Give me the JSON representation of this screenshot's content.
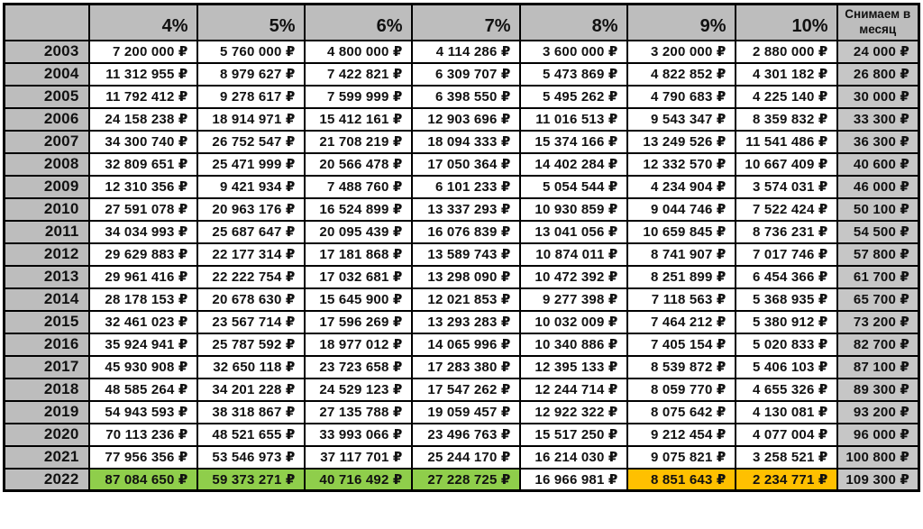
{
  "table": {
    "corner_label": "",
    "rate_headers": [
      "4%",
      "5%",
      "6%",
      "7%",
      "8%",
      "9%",
      "10%"
    ],
    "monthly_header": "Снимаем в месяц",
    "rows": [
      {
        "year": "2003",
        "cells": [
          "7 200 000 ₽",
          "5 760 000 ₽",
          "4 800 000 ₽",
          "4 114 286 ₽",
          "3 600 000 ₽",
          "3 200 000 ₽",
          "2 880 000 ₽"
        ],
        "monthly": "24 000 ₽"
      },
      {
        "year": "2004",
        "cells": [
          "11 312 955 ₽",
          "8 979 627 ₽",
          "7 422 821 ₽",
          "6 309 707 ₽",
          "5 473 869 ₽",
          "4 822 852 ₽",
          "4 301 182 ₽"
        ],
        "monthly": "26 800 ₽"
      },
      {
        "year": "2005",
        "cells": [
          "11 792 412 ₽",
          "9 278 617 ₽",
          "7 599 999 ₽",
          "6 398 550 ₽",
          "5 495 262 ₽",
          "4 790 683 ₽",
          "4 225 140 ₽"
        ],
        "monthly": "30 000 ₽"
      },
      {
        "year": "2006",
        "cells": [
          "24 158 238 ₽",
          "18 914 971 ₽",
          "15 412 161 ₽",
          "12 903 696 ₽",
          "11 016 513 ₽",
          "9 543 347 ₽",
          "8 359 832 ₽"
        ],
        "monthly": "33 300 ₽"
      },
      {
        "year": "2007",
        "cells": [
          "34 300 740 ₽",
          "26 752 547 ₽",
          "21 708 219 ₽",
          "18 094 333 ₽",
          "15 374 166 ₽",
          "13 249 526 ₽",
          "11 541 486 ₽"
        ],
        "monthly": "36 300 ₽"
      },
      {
        "year": "2008",
        "cells": [
          "32 809 651 ₽",
          "25 471 999 ₽",
          "20 566 478 ₽",
          "17 050 364 ₽",
          "14 402 284 ₽",
          "12 332 570 ₽",
          "10 667 409 ₽"
        ],
        "monthly": "40 600 ₽"
      },
      {
        "year": "2009",
        "cells": [
          "12 310 356 ₽",
          "9 421 934 ₽",
          "7 488 760 ₽",
          "6 101 233 ₽",
          "5 054 544 ₽",
          "4 234 904 ₽",
          "3 574 031 ₽"
        ],
        "monthly": "46 000 ₽"
      },
      {
        "year": "2010",
        "cells": [
          "27 591 078 ₽",
          "20 963 176 ₽",
          "16 524 899 ₽",
          "13 337 293 ₽",
          "10 930 859 ₽",
          "9 044 746 ₽",
          "7 522 424 ₽"
        ],
        "monthly": "50 100 ₽"
      },
      {
        "year": "2011",
        "cells": [
          "34 034 993 ₽",
          "25 687 647 ₽",
          "20 095 439 ₽",
          "16 076 839 ₽",
          "13 041 056 ₽",
          "10 659 845 ₽",
          "8 736 231 ₽"
        ],
        "monthly": "54 500 ₽"
      },
      {
        "year": "2012",
        "cells": [
          "29 629 883 ₽",
          "22 177 314 ₽",
          "17 181 868 ₽",
          "13 589 743 ₽",
          "10 874 011 ₽",
          "8 741 907 ₽",
          "7 017 746 ₽"
        ],
        "monthly": "57 800 ₽"
      },
      {
        "year": "2013",
        "cells": [
          "29 961 416 ₽",
          "22 222 754 ₽",
          "17 032 681 ₽",
          "13 298 090 ₽",
          "10 472 392 ₽",
          "8 251 899 ₽",
          "6 454 366 ₽"
        ],
        "monthly": "61 700 ₽"
      },
      {
        "year": "2014",
        "cells": [
          "28 178 153 ₽",
          "20 678 630 ₽",
          "15 645 900 ₽",
          "12 021 853 ₽",
          "9 277 398 ₽",
          "7 118 563 ₽",
          "5 368 935 ₽"
        ],
        "monthly": "65 700 ₽"
      },
      {
        "year": "2015",
        "cells": [
          "32 461 023 ₽",
          "23 567 714 ₽",
          "17 596 269 ₽",
          "13 293 283 ₽",
          "10 032 009 ₽",
          "7 464 212 ₽",
          "5 380 912 ₽"
        ],
        "monthly": "73 200 ₽"
      },
      {
        "year": "2016",
        "cells": [
          "35 924 941 ₽",
          "25 787 592 ₽",
          "18 977 012 ₽",
          "14 065 996 ₽",
          "10 340 886 ₽",
          "7 405 154 ₽",
          "5 020 833 ₽"
        ],
        "monthly": "82 700 ₽"
      },
      {
        "year": "2017",
        "cells": [
          "45 930 908 ₽",
          "32 650 118 ₽",
          "23 723 658 ₽",
          "17 283 380 ₽",
          "12 395 133 ₽",
          "8 539 872 ₽",
          "5 406 103 ₽"
        ],
        "monthly": "87 100 ₽"
      },
      {
        "year": "2018",
        "cells": [
          "48 585 264 ₽",
          "34 201 228 ₽",
          "24 529 123 ₽",
          "17 547 262 ₽",
          "12 244 714 ₽",
          "8 059 770 ₽",
          "4 655 326 ₽"
        ],
        "monthly": "89 300 ₽"
      },
      {
        "year": "2019",
        "cells": [
          "54 943 593 ₽",
          "38 318 867 ₽",
          "27 135 788 ₽",
          "19 059 457 ₽",
          "12 922 322 ₽",
          "8 075 642 ₽",
          "4 130 081 ₽"
        ],
        "monthly": "93 200 ₽"
      },
      {
        "year": "2020",
        "cells": [
          "70 113 236 ₽",
          "48 521 655 ₽",
          "33 993 066 ₽",
          "23 496 763 ₽",
          "15 517 250 ₽",
          "9 212 454 ₽",
          "4 077 004 ₽"
        ],
        "monthly": "96 000 ₽"
      },
      {
        "year": "2021",
        "cells": [
          "77 956 356 ₽",
          "53 546 973 ₽",
          "37 117 701 ₽",
          "25 244 170 ₽",
          "16 214 030 ₽",
          "9 075 821 ₽",
          "3 258 521 ₽"
        ],
        "monthly": "100 800 ₽"
      },
      {
        "year": "2022",
        "cells": [
          "87 084 650 ₽",
          "59 373 271 ₽",
          "40 716 492 ₽",
          "27 228 725 ₽",
          "16 966 981 ₽",
          "8 851 643 ₽",
          "2 234 771 ₽"
        ],
        "monthly": "109 300 ₽",
        "highlights": [
          "green",
          "green",
          "green",
          "green",
          null,
          "orange",
          "orange"
        ]
      }
    ],
    "colors": {
      "header_bg": "#bdbdbd",
      "monthly_col_bg": "#c6c6c6",
      "highlight_green": "#8fce4b",
      "highlight_orange": "#ffc000",
      "border": "#000000"
    }
  },
  "chart_data": {
    "type": "table",
    "title": "",
    "columns": [
      "",
      "4%",
      "5%",
      "6%",
      "7%",
      "8%",
      "9%",
      "10%",
      "Снимаем в месяц"
    ],
    "currency": "₽",
    "rows": [
      {
        "year": 2003,
        "values": [
          7200000,
          5760000,
          4800000,
          4114286,
          3600000,
          3200000,
          2880000
        ],
        "monthly_withdrawal": 24000
      },
      {
        "year": 2004,
        "values": [
          11312955,
          8979627,
          7422821,
          6309707,
          5473869,
          4822852,
          4301182
        ],
        "monthly_withdrawal": 26800
      },
      {
        "year": 2005,
        "values": [
          11792412,
          9278617,
          7599999,
          6398550,
          5495262,
          4790683,
          4225140
        ],
        "monthly_withdrawal": 30000
      },
      {
        "year": 2006,
        "values": [
          24158238,
          18914971,
          15412161,
          12903696,
          11016513,
          9543347,
          8359832
        ],
        "monthly_withdrawal": 33300
      },
      {
        "year": 2007,
        "values": [
          34300740,
          26752547,
          21708219,
          18094333,
          15374166,
          13249526,
          11541486
        ],
        "monthly_withdrawal": 36300
      },
      {
        "year": 2008,
        "values": [
          32809651,
          25471999,
          20566478,
          17050364,
          14402284,
          12332570,
          10667409
        ],
        "monthly_withdrawal": 40600
      },
      {
        "year": 2009,
        "values": [
          12310356,
          9421934,
          7488760,
          6101233,
          5054544,
          4234904,
          3574031
        ],
        "monthly_withdrawal": 46000
      },
      {
        "year": 2010,
        "values": [
          27591078,
          20963176,
          16524899,
          13337293,
          10930859,
          9044746,
          7522424
        ],
        "monthly_withdrawal": 50100
      },
      {
        "year": 2011,
        "values": [
          34034993,
          25687647,
          20095439,
          16076839,
          13041056,
          10659845,
          8736231
        ],
        "monthly_withdrawal": 54500
      },
      {
        "year": 2012,
        "values": [
          29629883,
          22177314,
          17181868,
          13589743,
          10874011,
          8741907,
          7017746
        ],
        "monthly_withdrawal": 57800
      },
      {
        "year": 2013,
        "values": [
          29961416,
          22222754,
          17032681,
          13298090,
          10472392,
          8251899,
          6454366
        ],
        "monthly_withdrawal": 61700
      },
      {
        "year": 2014,
        "values": [
          28178153,
          20678630,
          15645900,
          12021853,
          9277398,
          7118563,
          5368935
        ],
        "monthly_withdrawal": 65700
      },
      {
        "year": 2015,
        "values": [
          32461023,
          23567714,
          17596269,
          13293283,
          10032009,
          7464212,
          5380912
        ],
        "monthly_withdrawal": 73200
      },
      {
        "year": 2016,
        "values": [
          35924941,
          25787592,
          18977012,
          14065996,
          10340886,
          7405154,
          5020833
        ],
        "monthly_withdrawal": 82700
      },
      {
        "year": 2017,
        "values": [
          45930908,
          32650118,
          23723658,
          17283380,
          12395133,
          8539872,
          5406103
        ],
        "monthly_withdrawal": 87100
      },
      {
        "year": 2018,
        "values": [
          48585264,
          34201228,
          24529123,
          17547262,
          12244714,
          8059770,
          4655326
        ],
        "monthly_withdrawal": 89300
      },
      {
        "year": 2019,
        "values": [
          54943593,
          38318867,
          27135788,
          19059457,
          12922322,
          8075642,
          4130081
        ],
        "monthly_withdrawal": 93200
      },
      {
        "year": 2020,
        "values": [
          70113236,
          48521655,
          33993066,
          23496763,
          15517250,
          9212454,
          4077004
        ],
        "monthly_withdrawal": 96000
      },
      {
        "year": 2021,
        "values": [
          77956356,
          53546973,
          37117701,
          25244170,
          16214030,
          9075821,
          3258521
        ],
        "monthly_withdrawal": 100800
      },
      {
        "year": 2022,
        "values": [
          87084650,
          59373271,
          40716492,
          27228725,
          16966981,
          8851643,
          2234771
        ],
        "monthly_withdrawal": 109300
      }
    ]
  }
}
